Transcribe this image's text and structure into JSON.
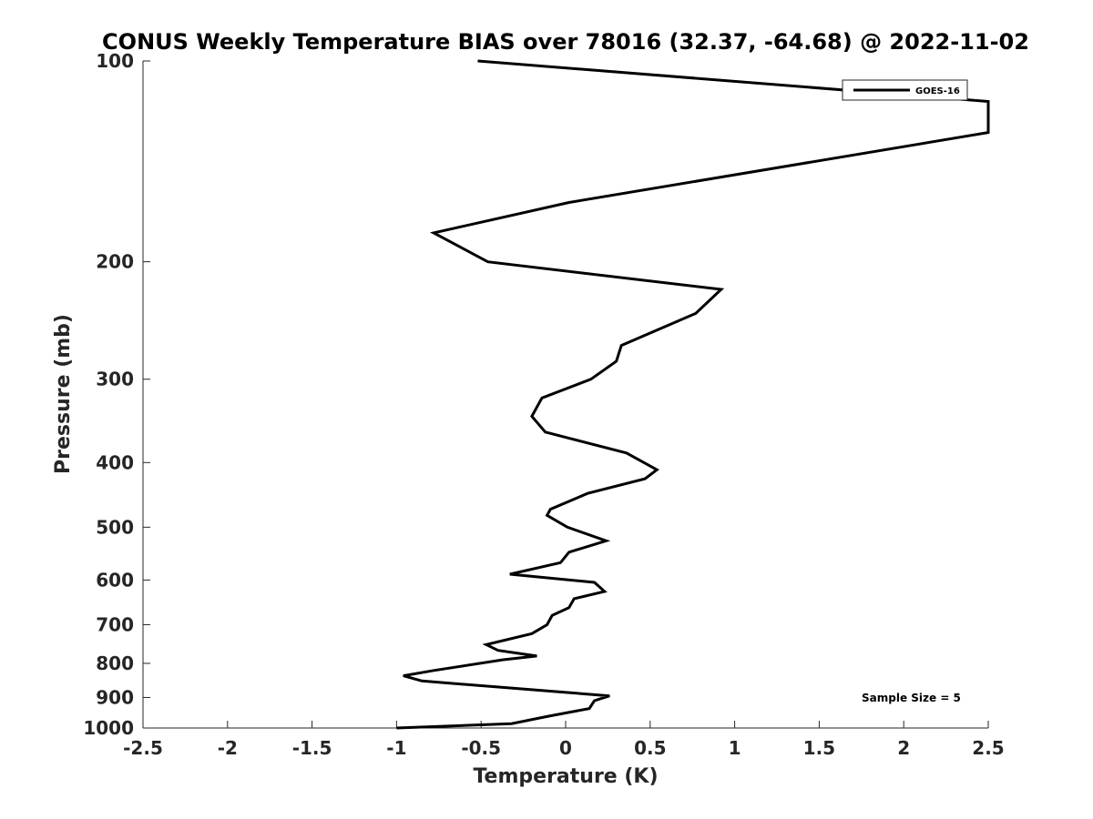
{
  "chart_data": {
    "type": "line",
    "title": "CONUS Weekly Temperature BIAS over 78016 (32.37, -64.68) @ 2022-11-02",
    "xlabel": "Temperature (K)",
    "ylabel": "Pressure (mb)",
    "xlim": [
      -2.5,
      2.5
    ],
    "ylim": [
      1000,
      100
    ],
    "yscale": "log",
    "y_reversed": true,
    "xticks": [
      -2.5,
      -2,
      -1.5,
      -1,
      -0.5,
      0,
      0.5,
      1,
      1.5,
      2,
      2.5
    ],
    "xtick_labels": [
      "-2.5",
      "-2",
      "-1.5",
      "-1",
      "-0.5",
      "0",
      "0.5",
      "1",
      "1.5",
      "2",
      "2.5"
    ],
    "yticks": [
      100,
      200,
      300,
      400,
      500,
      600,
      700,
      800,
      900,
      1000
    ],
    "ytick_labels": [
      "100",
      "200",
      "300",
      "400",
      "500",
      "600",
      "700",
      "800",
      "900",
      "1000"
    ],
    "grid": false,
    "legend_position": "top-right",
    "annotation": "Sample Size = 5",
    "series": [
      {
        "name": "GOES-16",
        "color": "#000000",
        "points": [
          {
            "x": -0.52,
            "y": 100
          },
          {
            "x": 2.5,
            "y": 115
          },
          {
            "x": 2.5,
            "y": 128
          },
          {
            "x": 0.02,
            "y": 163
          },
          {
            "x": -0.78,
            "y": 181
          },
          {
            "x": -0.46,
            "y": 200
          },
          {
            "x": 0.92,
            "y": 220
          },
          {
            "x": 0.77,
            "y": 239
          },
          {
            "x": 0.33,
            "y": 267
          },
          {
            "x": 0.3,
            "y": 282
          },
          {
            "x": 0.15,
            "y": 300
          },
          {
            "x": -0.14,
            "y": 320
          },
          {
            "x": -0.2,
            "y": 341
          },
          {
            "x": -0.12,
            "y": 360
          },
          {
            "x": 0.36,
            "y": 387
          },
          {
            "x": 0.54,
            "y": 410
          },
          {
            "x": 0.47,
            "y": 423
          },
          {
            "x": 0.13,
            "y": 445
          },
          {
            "x": -0.09,
            "y": 470
          },
          {
            "x": -0.11,
            "y": 480
          },
          {
            "x": 0.01,
            "y": 500
          },
          {
            "x": 0.24,
            "y": 524
          },
          {
            "x": 0.02,
            "y": 545
          },
          {
            "x": -0.03,
            "y": 565
          },
          {
            "x": -0.33,
            "y": 588
          },
          {
            "x": 0.17,
            "y": 605
          },
          {
            "x": 0.23,
            "y": 624
          },
          {
            "x": 0.05,
            "y": 640
          },
          {
            "x": 0.02,
            "y": 660
          },
          {
            "x": -0.08,
            "y": 678
          },
          {
            "x": -0.11,
            "y": 700
          },
          {
            "x": -0.2,
            "y": 722
          },
          {
            "x": -0.47,
            "y": 750
          },
          {
            "x": -0.4,
            "y": 765
          },
          {
            "x": -0.17,
            "y": 780
          },
          {
            "x": -0.37,
            "y": 790
          },
          {
            "x": -0.78,
            "y": 820
          },
          {
            "x": -0.96,
            "y": 835
          },
          {
            "x": -0.85,
            "y": 850
          },
          {
            "x": 0.26,
            "y": 895
          },
          {
            "x": 0.17,
            "y": 910
          },
          {
            "x": 0.14,
            "y": 935
          },
          {
            "x": -0.1,
            "y": 960
          },
          {
            "x": -0.32,
            "y": 985
          },
          {
            "x": -1.0,
            "y": 1000
          }
        ]
      }
    ]
  }
}
